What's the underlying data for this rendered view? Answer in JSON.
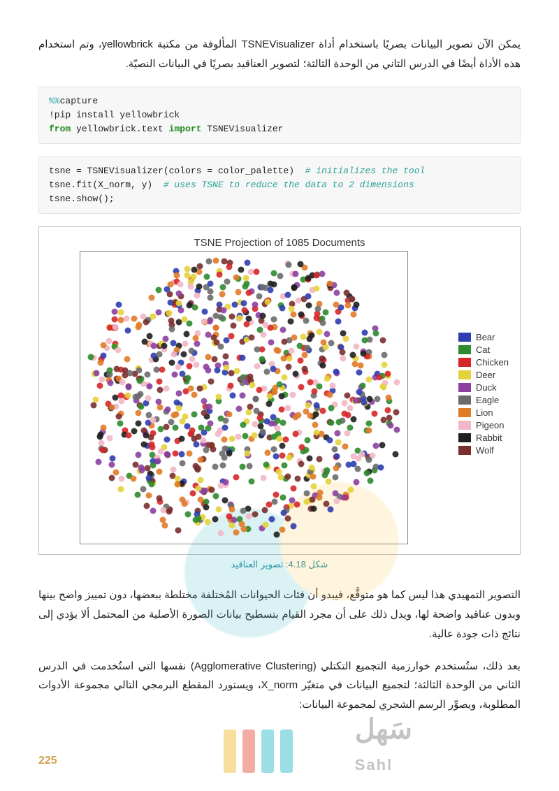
{
  "paragraphs": {
    "p1": "يمكن الآن تصوير البيانات بصريًا باستخدام أداة TSNEVisualizer المألوفة من مكتبة yellowbrick، وتم استخدام هذه الأداة أيضًا في الدرس الثاني من الوحدة الثالثة؛ لتصوير العناقيد بصريًا في البيانات النصيّة.",
    "p2": "التصوير التمهيدي هذا ليس كما هو متوقَّع، فيبدو أن فئات الحيوانات المُختلفة مختلطة ببعضها، دون تمييز واضح بينها وبدون عناقيد واضحة لها، ويدل ذلك على أن مجرد القيام بتسطيح بيانات الصورة الأصلية من المحتمل ألا يؤدي إلى نتائج ذات جودة عالية.",
    "p3": "بعد ذلك، ستُستخدم خوارزمية التجميع التكتلي (Agglomerative Clustering) نفسها التي استُخدمت في الدرس الثاني من الوحدة الثالثة؛ لتجميع البيانات في متغيّر X_norm، ويستورد المقطع البرمجي التالي مجموعة الأدوات المطلوبة، ويصوِّر الرسم الشجري لمجموعة البيانات:"
  },
  "code1": {
    "l1a": "%%",
    "l1b": "capture",
    "l2": "!pip install yellowbrick",
    "l3a": "from",
    "l3b": " yellowbrick.text ",
    "l3c": "import",
    "l3d": " TSNEVisualizer"
  },
  "code2": {
    "l1a": "tsne = TSNEVisualizer(colors = color_palette)  ",
    "l1c": "# initializes the tool",
    "l2a": "tsne.fit(X_norm, y)  ",
    "l2c": "# uses TSNE to reduce the data to 2 dimensions",
    "l3": "tsne.show();"
  },
  "chart": {
    "title": "TSNE Projection of 1085 Documents",
    "caption": "شكل 4.18: تصوير العناقيد",
    "legend": [
      {
        "label": "Bear",
        "color": "#2e3db0"
      },
      {
        "label": "Cat",
        "color": "#2e8b2e"
      },
      {
        "label": "Chicken",
        "color": "#d62728"
      },
      {
        "label": "Deer",
        "color": "#e4d23b"
      },
      {
        "label": "Duck",
        "color": "#8c3fa0"
      },
      {
        "label": "Eagle",
        "color": "#6b6b6b"
      },
      {
        "label": "Lion",
        "color": "#e07b28"
      },
      {
        "label": "Pigeon",
        "color": "#f2b7c6"
      },
      {
        "label": "Rabbit",
        "color": "#1f1f1f"
      },
      {
        "label": "Wolf",
        "color": "#7a2e2e"
      }
    ],
    "axis_color": "#888888",
    "n_points": 1085,
    "seed": 418
  },
  "page_number": "225",
  "watermark": {
    "text": "سَهل",
    "sub": "Sahl",
    "bars": [
      "#3abfcf",
      "#3abfcf",
      "#e95b4a",
      "#f2c13c"
    ]
  }
}
